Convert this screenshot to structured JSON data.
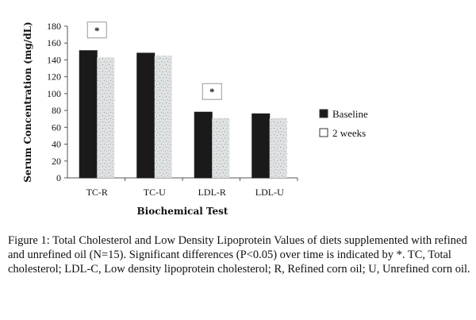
{
  "chart_data": {
    "type": "bar",
    "categories": [
      "TC-R",
      "TC-U",
      "LDL-R",
      "LDL-U"
    ],
    "series": [
      {
        "name": "Baseline",
        "values": [
          151,
          148,
          78,
          76
        ],
        "color": "#1a1a1a"
      },
      {
        "name": "2 weeks",
        "values": [
          143,
          145,
          71,
          71
        ],
        "color": "#d9dcdc",
        "pattern": "speckled"
      }
    ],
    "xlabel": "Biochemical Test",
    "ylabel": "Serum Concentration (mg/dL)",
    "ylim": [
      0,
      180
    ],
    "yticks": [
      0,
      20,
      40,
      60,
      80,
      100,
      120,
      140,
      160,
      180
    ],
    "grid": false,
    "legend_position": "right",
    "annotations": [
      {
        "text": "*",
        "category": "TC-R"
      },
      {
        "text": "*",
        "category": "LDL-R"
      }
    ]
  },
  "caption": {
    "text": "Figure 1: Total Cholesterol and Low Density Lipoprotein Values of diets supplemented with refined and unrefined oil (N=15). Significant differences (P<0.05) over time is indicated by *. TC, Total cholesterol; LDL-C, Low density lipoprotein cholesterol; R, Refined corn oil; U, Unrefined corn oil."
  }
}
